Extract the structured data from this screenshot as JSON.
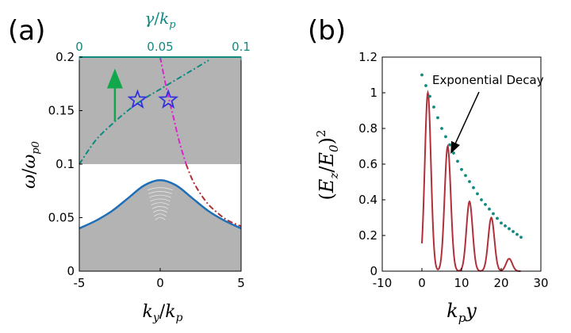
{
  "chart_data": [
    {
      "panel": "(a)",
      "type": "line",
      "xlabel_base": "k",
      "xlabel_sub": "y",
      "xlabel_sep": "/",
      "xlabel_base2": "k",
      "xlabel_sub2": "p",
      "ylabel_base": "ω",
      "ylabel_sep": "/",
      "ylabel_base2": "ω",
      "ylabel_sub2": "p0",
      "top_xlabel_base": "γ",
      "top_xlabel_sep": "/",
      "top_xlabel_base2": "k",
      "top_xlabel_sub2": "p",
      "xlim": [
        -5,
        5
      ],
      "ylim": [
        0,
        0.2
      ],
      "top_xlim": [
        0,
        0.1
      ],
      "xticks": [
        -5,
        0,
        5
      ],
      "xtick_labels": [
        "-5",
        "0",
        "5"
      ],
      "yticks": [
        0,
        0.05,
        0.1,
        0.15,
        0.2
      ],
      "ytick_labels": [
        "0",
        "0.05",
        "0.1",
        "0.15",
        "0.2"
      ],
      "top_xticks": [
        0,
        0.05,
        0.1
      ],
      "top_xtick_labels": [
        "0",
        "0.05",
        "0.1"
      ],
      "shaded_band_upper": [
        0.1,
        0.2
      ],
      "series": [
        {
          "name": "lower band edge",
          "color": "#1f6fb8",
          "style": "solid",
          "x": [
            -5,
            -4,
            -3,
            -2,
            -1,
            0,
            1,
            2,
            3,
            4,
            5
          ],
          "y": [
            0.04,
            0.047,
            0.056,
            0.068,
            0.08,
            0.085,
            0.08,
            0.068,
            0.056,
            0.047,
            0.04
          ]
        },
        {
          "name": "surface mode branch (lower)",
          "color": "#b0303a",
          "style": "dashdot",
          "x": [
            1.6,
            2.0,
            2.5,
            3.0,
            3.5,
            4.0,
            4.5,
            5.0
          ],
          "y": [
            0.1,
            0.085,
            0.072,
            0.062,
            0.055,
            0.049,
            0.045,
            0.042
          ]
        },
        {
          "name": "surface mode branch (upper)",
          "color": "#e020d0",
          "style": "dashdot",
          "x": [
            0.0,
            0.4,
            0.8,
            1.2,
            1.6
          ],
          "y": [
            0.2,
            0.17,
            0.145,
            0.12,
            0.1
          ]
        },
        {
          "name": "γ/k_p",
          "color": "#0e8a80",
          "style": "dashdot",
          "axis": "top",
          "x": [
            0.0,
            0.01,
            0.02,
            0.03,
            0.04,
            0.05,
            0.06,
            0.07,
            0.08
          ],
          "y": [
            0.1,
            0.122,
            0.137,
            0.15,
            0.161,
            0.17,
            0.179,
            0.188,
            0.197
          ]
        }
      ],
      "markers": [
        {
          "name": "star-1",
          "x": -1.4,
          "y": 0.16,
          "color": "#3333dd"
        },
        {
          "name": "star-2",
          "x": 0.5,
          "y": 0.16,
          "color": "#3333dd"
        }
      ],
      "arrow": {
        "x": -2.8,
        "y_from": 0.14,
        "y_to": 0.19,
        "color": "#11a84b"
      }
    },
    {
      "panel": "(b)",
      "type": "line",
      "xlabel_base": "k",
      "xlabel_sub": "p",
      "xlabel_tail": "y",
      "ylabel_open": "(",
      "ylabel_base": "E",
      "ylabel_sub": "z",
      "ylabel_sep": "/",
      "ylabel_base2": "E",
      "ylabel_sub2": "0",
      "ylabel_close": ")",
      "ylabel_sup": "2",
      "xlim": [
        -10,
        30
      ],
      "ylim": [
        0,
        1.2
      ],
      "xticks": [
        -10,
        0,
        10,
        20,
        30
      ],
      "xtick_labels": [
        "-10",
        "0",
        "10",
        "20",
        "30"
      ],
      "yticks": [
        0,
        0.2,
        0.4,
        0.6,
        0.8,
        1,
        1.2
      ],
      "ytick_labels": [
        "0",
        "0.2",
        "0.4",
        "0.6",
        "0.8",
        "1",
        "1.2"
      ],
      "series": [
        {
          "name": "field intensity",
          "color": "#b0303a",
          "style": "solid",
          "peaks": [
            {
              "x": 1.5,
              "y": 1.0
            },
            {
              "x": 6.5,
              "y": 0.7
            },
            {
              "x": 12.0,
              "y": 0.39
            },
            {
              "x": 17.5,
              "y": 0.3
            },
            {
              "x": 22.0,
              "y": 0.07
            }
          ],
          "x_range": [
            0,
            25
          ]
        },
        {
          "name": "exponential envelope",
          "color": "#0e8a80",
          "style": "dotted",
          "x": [
            0,
            5,
            10,
            15,
            20,
            25
          ],
          "y": [
            1.1,
            0.8,
            0.57,
            0.4,
            0.27,
            0.19
          ]
        }
      ],
      "annotation": {
        "text": "Exponential Decay",
        "points_to_x": 7.5,
        "points_to_y": 0.67
      }
    }
  ]
}
